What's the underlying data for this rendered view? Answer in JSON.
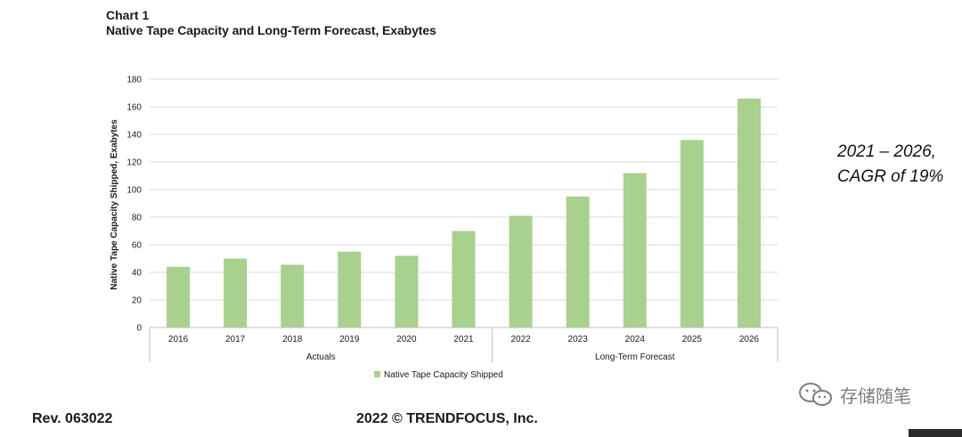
{
  "chart_data": {
    "type": "bar",
    "chart_label": "Chart 1",
    "title": "Native Tape Capacity and Long-Term Forecast, Exabytes",
    "categories": [
      "2016",
      "2017",
      "2018",
      "2019",
      "2020",
      "2021",
      "2022",
      "2023",
      "2024",
      "2025",
      "2026"
    ],
    "series": [
      {
        "name": "Native Tape Capacity Shipped",
        "values": [
          44,
          50,
          45.5,
          55,
          52,
          70,
          81,
          95,
          112,
          136,
          166
        ]
      }
    ],
    "groups": [
      {
        "label": "Actuals",
        "categories": [
          "2016",
          "2017",
          "2018",
          "2019",
          "2020",
          "2021"
        ]
      },
      {
        "label": "Long-Term Forecast",
        "categories": [
          "2022",
          "2023",
          "2024",
          "2025",
          "2026"
        ]
      }
    ],
    "ylabel": "Native Tape Capacity Shipped, Exabytes",
    "ylim": [
      0,
      180
    ],
    "yticks": [
      0,
      20,
      40,
      60,
      80,
      100,
      120,
      140,
      160,
      180
    ],
    "grid": true,
    "legend": "bottom-center",
    "bar_color": "#a8d18d",
    "grid_color": "#d9d9d9"
  },
  "annotation": {
    "line1": "2021 – 2026,",
    "line2": "CAGR of 19%"
  },
  "footer": {
    "revision": "Rev. 063022",
    "copyright": "2022 © TRENDFOCUS, Inc."
  },
  "watermark": {
    "text": "存储随笔",
    "icon": "wechat-icon"
  }
}
